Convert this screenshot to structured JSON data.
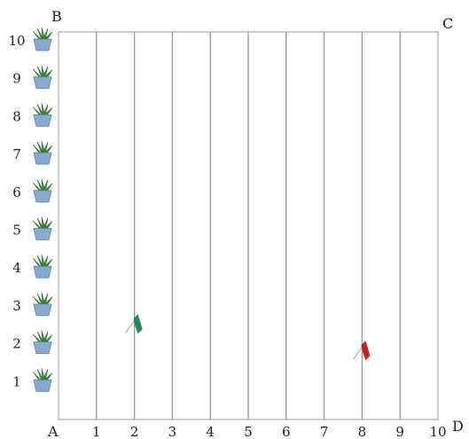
{
  "corners": {
    "a": "A",
    "b": "B",
    "c": "C",
    "d": "D"
  },
  "x_labels": [
    "1",
    "2",
    "3",
    "4",
    "5",
    "6",
    "7",
    "8",
    "9",
    "10"
  ],
  "y_labels": [
    "1",
    "2",
    "3",
    "4",
    "5",
    "6",
    "7",
    "8",
    "9",
    "10"
  ],
  "grid": {
    "columns": 10,
    "rows": 10,
    "vertical_lines": true,
    "horizontal_lines": false
  },
  "plant_rows": [
    1,
    2,
    3,
    4,
    5,
    6,
    7,
    8,
    9,
    10
  ],
  "flags": [
    {
      "name": "green-flag",
      "line": 2,
      "row": 2.5,
      "color": "#1f8a52"
    },
    {
      "name": "red-flag",
      "line": 8,
      "row": 1.8,
      "color": "#c0222a"
    }
  ],
  "colors": {
    "line": "#999999",
    "pot": "#8aa9cf",
    "leaf": "#3f8f3a"
  }
}
